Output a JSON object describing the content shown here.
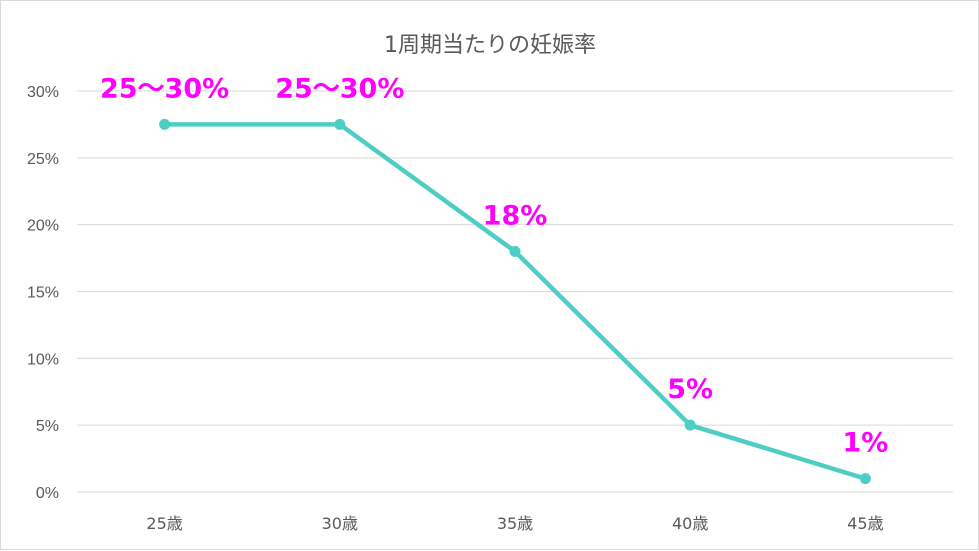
{
  "chart_data": {
    "type": "line",
    "title": "1周期当たりの妊娠率",
    "xlabel": "",
    "ylabel": "",
    "categories": [
      "25歳",
      "30歳",
      "35歳",
      "40歳",
      "45歳"
    ],
    "series": [
      {
        "values": [
          27.5,
          27.5,
          18,
          5,
          1
        ],
        "data_labels": [
          "25～30%",
          "25～30%",
          "18%",
          "5%",
          "1%"
        ]
      }
    ],
    "ylim": [
      0,
      30
    ],
    "yticks": [
      "0%",
      "5%",
      "10%",
      "15%",
      "20%",
      "25%",
      "30%"
    ],
    "grid": "horizontal",
    "legend": "none",
    "colors": {
      "line": "#4ECDC4",
      "label": "#FF00FF",
      "grid": "#d9d9d9",
      "text": "#595959"
    }
  }
}
